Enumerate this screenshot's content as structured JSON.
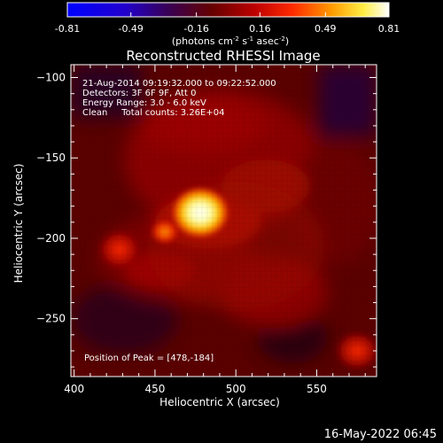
{
  "chart_data": {
    "type": "heatmap",
    "title": "Reconstructed RHESSI Image",
    "xlabel": "Heliocentric X (arcsec)",
    "ylabel": "Heliocentric Y (arcsec)",
    "xlim": [
      398,
      587
    ],
    "ylim": [
      -286,
      -92
    ],
    "xticks": [
      400,
      450,
      500,
      550
    ],
    "yticks": [
      -100,
      -150,
      -200,
      -250
    ],
    "grid": false,
    "colorbar": {
      "position": "top",
      "ticks": [
        "-0.81",
        "-0.49",
        "-0.16",
        "0.16",
        "0.49",
        "0.81"
      ],
      "range": [
        -0.81,
        0.81
      ],
      "unit_label": "(photons cm",
      "unit_parts": {
        "a": "(photons cm",
        "exp1": "-2",
        "b": " s",
        "exp2": "-1",
        "c": " asec",
        "exp3": "-2",
        "d": ")"
      },
      "colormap": [
        "#0000ff",
        "#3300aa",
        "#550000",
        "#aa0000",
        "#ff3300",
        "#ffaa00",
        "#ffff66",
        "#ffffff"
      ]
    },
    "annotations": [
      "21-Aug-2014 09:19:32.000 to 09:22:52.000",
      "Detectors: 3F 6F 9F, Att 0",
      "Energy Range: 3.0 - 6.0 keV",
      "Clean     Total counts: 3.26E+04"
    ],
    "peak_label": "Position of Peak = [478,-184]",
    "peak": {
      "x": 478,
      "y": -184,
      "value": 0.81
    },
    "sources": [
      {
        "x": 478,
        "y": -184,
        "value": 0.81,
        "sigma": 7
      },
      {
        "x": 456,
        "y": -196,
        "value": 0.35,
        "sigma": 5
      },
      {
        "x": 428,
        "y": -207,
        "value": 0.28,
        "sigma": 9
      },
      {
        "x": 575,
        "y": -270,
        "value": 0.25,
        "sigma": 9
      },
      {
        "x": 500,
        "y": -205,
        "value": 0.1,
        "sigma": 25
      }
    ]
  },
  "footer": {
    "timestamp": "16-May-2022 06:45"
  }
}
